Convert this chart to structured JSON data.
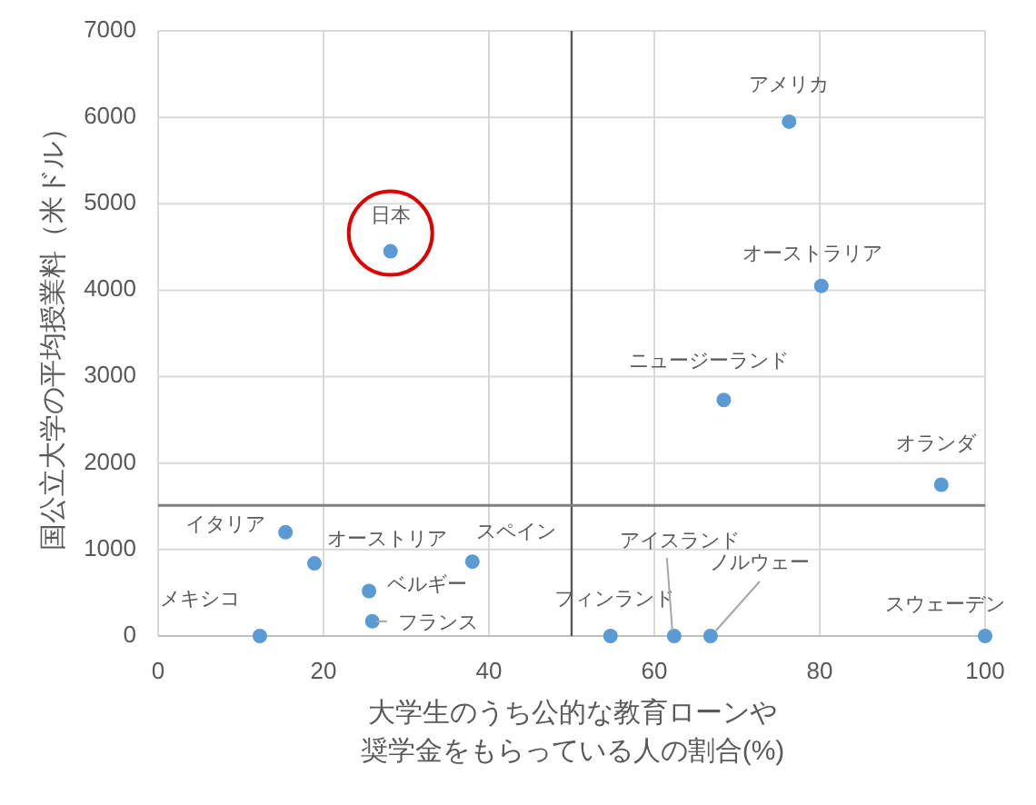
{
  "chart_data": {
    "type": "scatter",
    "xlabel": "大学生のうち公的な教育ローンや奨学金をもらっている人の割合(%)",
    "ylabel": "国公立大学の平均授業料（米ドル）",
    "x": [
      76.3,
      28.1,
      80.2,
      68.4,
      94.7,
      15.4,
      18.9,
      38.0,
      25.5,
      25.9,
      12.3,
      54.7,
      62.4,
      66.8,
      100
    ],
    "values": [
      5950,
      4450,
      4050,
      2730,
      1750,
      1200,
      840,
      860,
      520,
      170,
      0,
      0,
      0,
      0,
      0
    ],
    "color": "#5b9bd5",
    "marker": "circle",
    "grid": true,
    "xlim": [
      0,
      100
    ],
    "xticks": [
      0,
      20,
      40,
      60,
      80,
      100
    ],
    "ylim": [
      0,
      7000
    ],
    "yticks": [
      0,
      1000,
      2000,
      3000,
      4000,
      5000,
      6000,
      7000
    ],
    "ref_lines": [
      {
        "axis": "x",
        "value": 50,
        "color": "#595959"
      },
      {
        "axis": "y",
        "value": 1510,
        "color": "#7f7f7f"
      }
    ],
    "annotations": [
      {
        "text": "アメリカ",
        "x": 76.3,
        "y": 5950
      },
      {
        "text": "日本",
        "x": 28.1,
        "y": 4450
      },
      {
        "text": "オーストラリア",
        "x": 80.2,
        "y": 4050
      },
      {
        "text": "ニュージーランド",
        "x": 68.4,
        "y": 2730
      },
      {
        "text": "オランダ",
        "x": 94.7,
        "y": 1750
      },
      {
        "text": "イタリア",
        "x": 15.4,
        "y": 1200
      },
      {
        "text": "オーストリア",
        "x": 18.9,
        "y": 840
      },
      {
        "text": "スペイン",
        "x": 38.0,
        "y": 860
      },
      {
        "text": "ベルギー",
        "x": 25.5,
        "y": 520
      },
      {
        "text": "フランス",
        "x": 25.9,
        "y": 170
      },
      {
        "text": "メキシコ",
        "x": 12.3,
        "y": 0
      },
      {
        "text": "フィンランド",
        "x": 54.7,
        "y": 0
      },
      {
        "text": "アイスランド",
        "x": 62.4,
        "y": 0
      },
      {
        "text": "ノルウェー",
        "x": 66.8,
        "y": 0
      },
      {
        "text": "スウェーデン",
        "x": 100,
        "y": 0
      }
    ]
  }
}
